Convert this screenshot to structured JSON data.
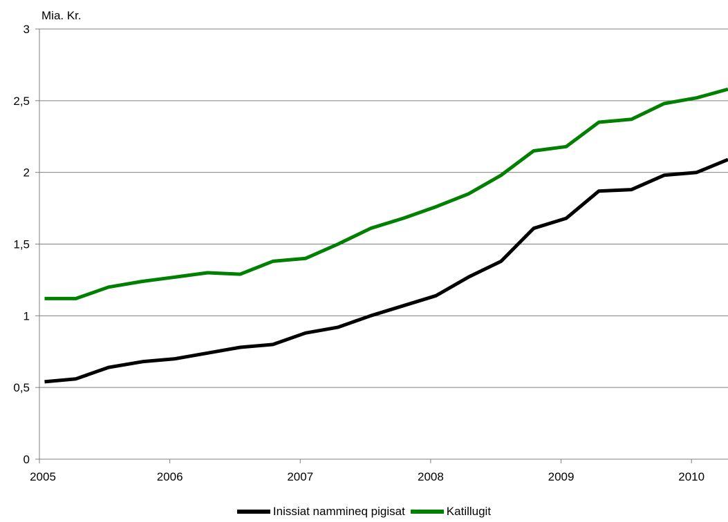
{
  "chart_data": {
    "type": "line",
    "ylabel": "Mia. Kr.",
    "ylim": [
      0,
      3
    ],
    "yticks": [
      0,
      0.5,
      1,
      1.5,
      2,
      2.5,
      3
    ],
    "ytick_labels": [
      "0",
      "0,5",
      "1",
      "1,5",
      "2",
      "2,5",
      "3"
    ],
    "xlim": [
      2005,
      2010.28
    ],
    "xticks": [
      2005,
      2006,
      2007,
      2008,
      2009,
      2010
    ],
    "xtick_labels": [
      "2005",
      "2006",
      "2007",
      "2008",
      "2009",
      "2010"
    ],
    "grid": "horizontal",
    "legend_position": "bottom",
    "x": [
      2005.04,
      2005.28,
      2005.53,
      2005.79,
      2006.04,
      2006.29,
      2006.54,
      2006.79,
      2007.04,
      2007.29,
      2007.54,
      2007.79,
      2008.04,
      2008.29,
      2008.54,
      2008.79,
      2009.04,
      2009.29,
      2009.54,
      2009.79,
      2010.04,
      2010.28
    ],
    "series": [
      {
        "name": "Inissiat nammineq pigisat",
        "color": "#000000",
        "values": [
          0.54,
          0.56,
          0.64,
          0.68,
          0.7,
          0.74,
          0.78,
          0.8,
          0.88,
          0.92,
          1.0,
          1.07,
          1.14,
          1.27,
          1.38,
          1.61,
          1.68,
          1.87,
          1.88,
          1.98,
          2.0,
          2.09
        ]
      },
      {
        "name": "Katillugit",
        "color": "#008000",
        "values": [
          1.12,
          1.12,
          1.2,
          1.24,
          1.27,
          1.3,
          1.29,
          1.38,
          1.4,
          1.5,
          1.61,
          1.68,
          1.76,
          1.85,
          1.98,
          2.15,
          2.18,
          2.35,
          2.37,
          2.48,
          2.52,
          2.58
        ]
      }
    ]
  }
}
